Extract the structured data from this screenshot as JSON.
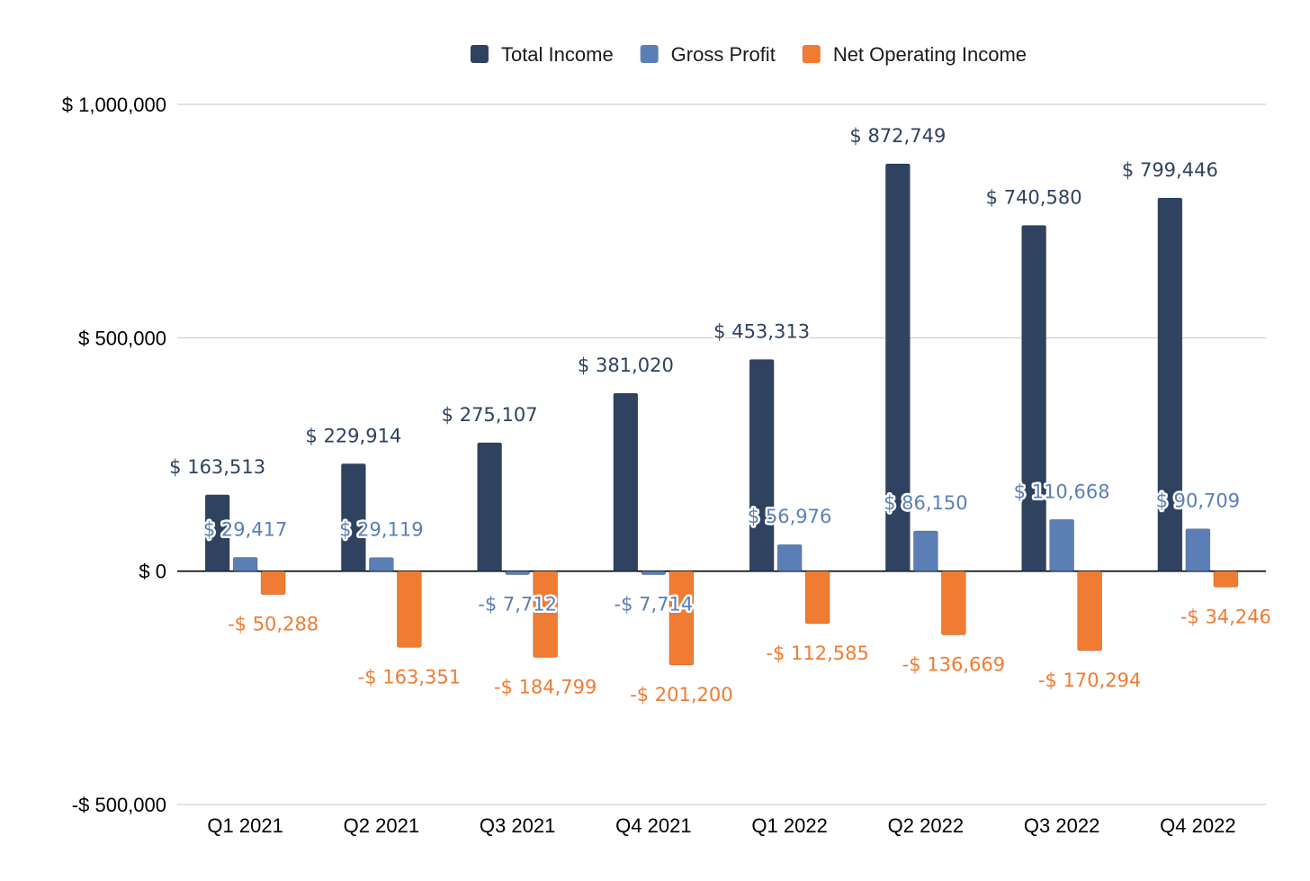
{
  "chart_data": {
    "type": "bar",
    "categories": [
      "Q1 2021",
      "Q2 2021",
      "Q3 2021",
      "Q4 2021",
      "Q1 2022",
      "Q2 2022",
      "Q3 2022",
      "Q4 2022"
    ],
    "series": [
      {
        "name": "Total Income",
        "color": "#2f4260",
        "values": [
          163513,
          229914,
          275107,
          381020,
          453313,
          872749,
          740580,
          799446
        ],
        "labels": [
          "$ 163,513",
          "$ 229,914",
          "$ 275,107",
          "$ 381,020",
          "$ 453,313",
          "$ 872,749",
          "$ 740,580",
          "$ 799,446"
        ]
      },
      {
        "name": "Gross Profit",
        "color": "#5b7fb5",
        "values": [
          29417,
          29119,
          -7712,
          -7714,
          56976,
          86150,
          110668,
          90709
        ],
        "labels": [
          "$ 29,417",
          "$ 29,119",
          "-$ 7,712",
          "-$ 7,714",
          "$ 56,976",
          "$ 86,150",
          "$ 110,668",
          "$ 90,709"
        ]
      },
      {
        "name": "Net Operating Income",
        "color": "#f07b32",
        "values": [
          -50288,
          -163351,
          -184799,
          -201200,
          -112585,
          -136669,
          -170294,
          -34246
        ],
        "labels": [
          "-$ 50,288",
          "-$ 163,351",
          "-$ 184,799",
          "-$ 201,200",
          "-$ 112,585",
          "-$ 136,669",
          "-$ 170,294",
          "-$ 34,246"
        ]
      }
    ],
    "ylim": [
      -500000,
      1000000
    ],
    "yticks": [
      {
        "value": 1000000,
        "label": "$ 1,000,000"
      },
      {
        "value": 500000,
        "label": "$ 500,000"
      },
      {
        "value": 0,
        "label": "$ 0"
      },
      {
        "value": -500000,
        "label": "-$ 500,000"
      }
    ],
    "title": "",
    "xlabel": "",
    "ylabel": "",
    "grid": true,
    "legend_position": "top-center"
  }
}
